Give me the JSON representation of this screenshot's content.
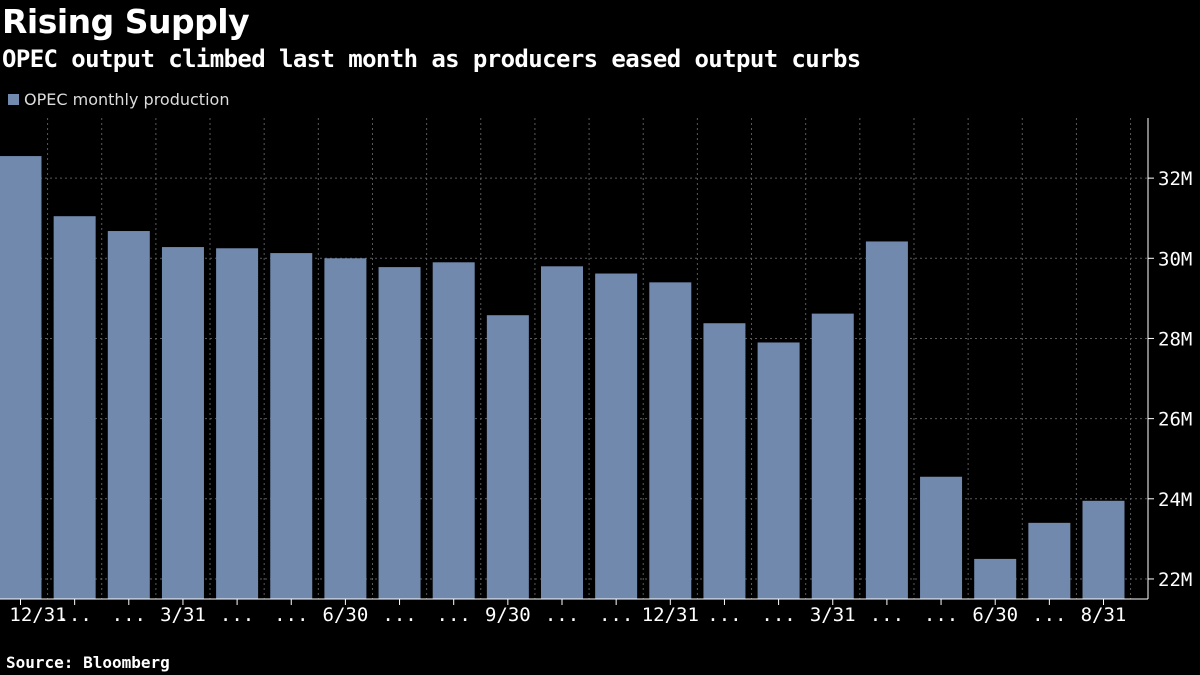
{
  "title": "Rising Supply",
  "subtitle": "OPEC output climbed last month as producers eased output curbs",
  "source": "Source: Bloomberg",
  "colors": {
    "background": "#000000",
    "bar": "#7189ad",
    "grid": "#5a5a5a",
    "text": "#ffffff"
  },
  "chart_data": {
    "type": "bar",
    "legend": [
      "OPEC monthly production"
    ],
    "legend_position": "top-left",
    "grid": true,
    "y_axis_position": "right",
    "categories": [
      "12/31",
      "...",
      "...",
      "3/31",
      "...",
      "...",
      "6/30",
      "...",
      "...",
      "9/30",
      "...",
      "...",
      "12/31",
      "...",
      "...",
      "3/31",
      "...",
      "...",
      "6/30",
      "...",
      "8/31"
    ],
    "series": [
      {
        "name": "OPEC monthly production",
        "values": [
          32.55,
          31.05,
          30.68,
          30.28,
          30.25,
          30.13,
          30.0,
          29.78,
          29.9,
          28.58,
          29.8,
          29.62,
          29.4,
          28.38,
          27.9,
          28.62,
          30.42,
          24.55,
          22.5,
          23.4,
          23.95
        ]
      }
    ],
    "ylim": [
      21.5,
      33.5
    ],
    "yticks": [
      22,
      24,
      26,
      28,
      30,
      32
    ],
    "ytick_labels": [
      "22M",
      "24M",
      "26M",
      "28M",
      "30M",
      "32M"
    ]
  }
}
